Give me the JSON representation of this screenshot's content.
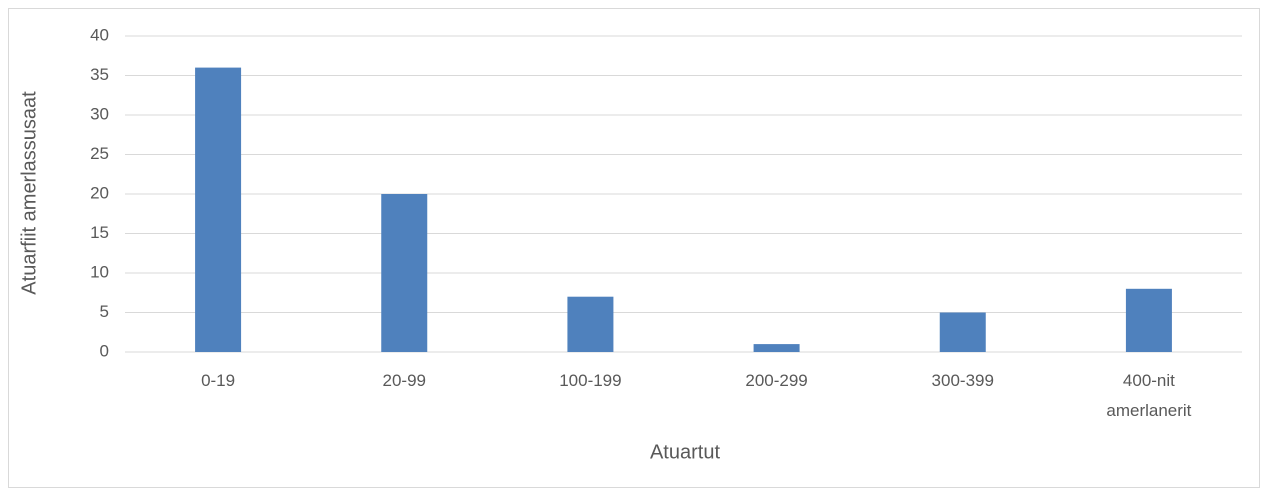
{
  "chart_data": {
    "type": "bar",
    "categories": [
      "0-19",
      "20-99",
      "100-199",
      "200-299",
      "300-399",
      "400-nit amerlanerit"
    ],
    "values": [
      36,
      20,
      7,
      1,
      5,
      8
    ],
    "color": "#4f81bd",
    "ylim": [
      0,
      40
    ],
    "yticks": [
      0,
      5,
      10,
      15,
      20,
      25,
      30,
      35,
      40
    ],
    "grid": true,
    "xlabel": "Atuartut",
    "ylabel": "Atuarfiit amerlassusaat"
  }
}
